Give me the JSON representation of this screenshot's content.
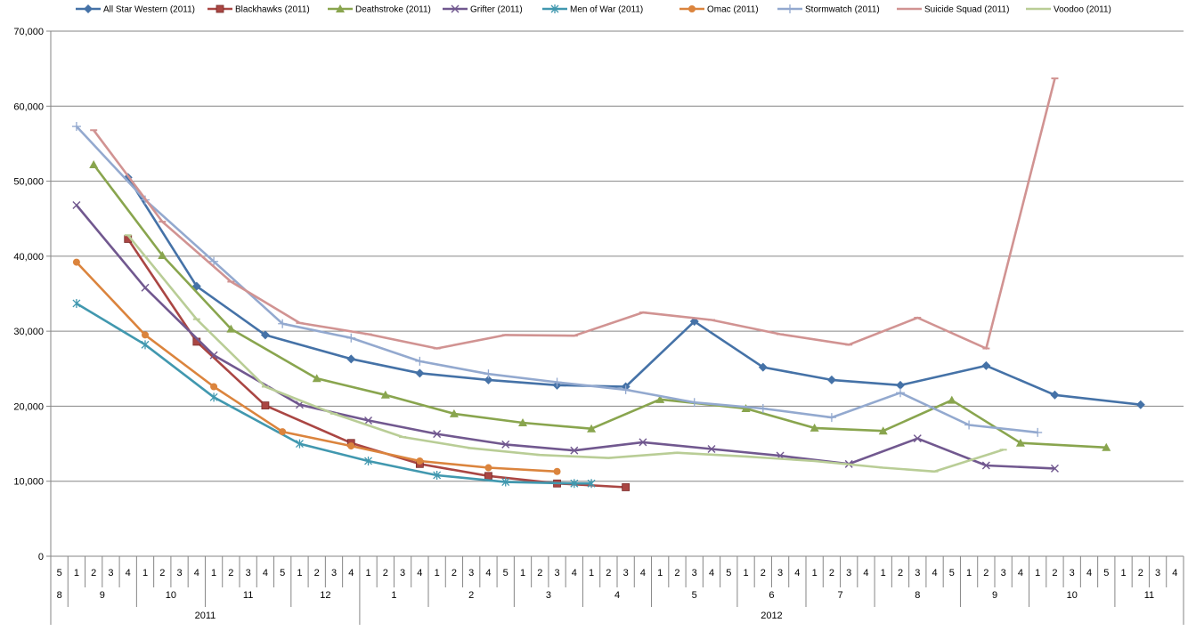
{
  "chart_data": {
    "type": "line",
    "ylim": [
      0,
      70000
    ],
    "y_ticks": [
      "0",
      "10,000",
      "20,000",
      "30,000",
      "40,000",
      "50,000",
      "60,000",
      "70,000"
    ],
    "grid": "horizontal",
    "legend_position": "top",
    "x_axis": {
      "weeks": [
        "5",
        "1",
        "2",
        "3",
        "4",
        "1",
        "2",
        "3",
        "4",
        "1",
        "2",
        "3",
        "4",
        "5",
        "1",
        "2",
        "3",
        "4",
        "1",
        "2",
        "3",
        "4",
        "1",
        "2",
        "3",
        "4",
        "5",
        "1",
        "2",
        "3",
        "4",
        "1",
        "2",
        "3",
        "4",
        "1",
        "2",
        "3",
        "4",
        "5",
        "1",
        "2",
        "3",
        "4",
        "1",
        "2",
        "3",
        "4",
        "1",
        "2",
        "3",
        "4",
        "5",
        "1",
        "2",
        "3",
        "4",
        "1",
        "2",
        "3",
        "4",
        "5",
        "1",
        "2",
        "3",
        "4"
      ],
      "months": [
        {
          "label": "8",
          "start": 0,
          "span": 1
        },
        {
          "label": "9",
          "start": 1,
          "span": 4
        },
        {
          "label": "10",
          "start": 5,
          "span": 4
        },
        {
          "label": "11",
          "start": 9,
          "span": 5
        },
        {
          "label": "12",
          "start": 14,
          "span": 4
        },
        {
          "label": "1",
          "start": 18,
          "span": 4
        },
        {
          "label": "2",
          "start": 22,
          "span": 5
        },
        {
          "label": "3",
          "start": 27,
          "span": 4
        },
        {
          "label": "4",
          "start": 31,
          "span": 4
        },
        {
          "label": "5",
          "start": 35,
          "span": 5
        },
        {
          "label": "6",
          "start": 40,
          "span": 4
        },
        {
          "label": "7",
          "start": 44,
          "span": 4
        },
        {
          "label": "8",
          "start": 48,
          "span": 5
        },
        {
          "label": "9",
          "start": 53,
          "span": 4
        },
        {
          "label": "10",
          "start": 57,
          "span": 5
        },
        {
          "label": "11",
          "start": 62,
          "span": 4
        }
      ],
      "years": [
        {
          "label": "2011",
          "start": 0,
          "span": 18
        },
        {
          "label": "2012",
          "start": 18,
          "span": 48
        }
      ]
    },
    "series": [
      {
        "name": "All Star Western (2011)",
        "color": "#4572A7",
        "marker": "diamond",
        "points": [
          [
            4,
            50500
          ],
          [
            8,
            36000
          ],
          [
            12,
            29500
          ],
          [
            17,
            26300
          ],
          [
            21,
            24400
          ],
          [
            25,
            23500
          ],
          [
            29,
            22800
          ],
          [
            33,
            22600
          ],
          [
            37,
            31300
          ],
          [
            41,
            25200
          ],
          [
            45,
            23500
          ],
          [
            49,
            22800
          ],
          [
            54,
            25400
          ],
          [
            58,
            21500
          ],
          [
            63,
            20200
          ]
        ]
      },
      {
        "name": "Blackhawks (2011)",
        "color": "#AA4643",
        "marker": "square",
        "points": [
          [
            4,
            42300
          ],
          [
            8,
            28600
          ],
          [
            12,
            20100
          ],
          [
            17,
            15100
          ],
          [
            21,
            12300
          ],
          [
            25,
            10700
          ],
          [
            29,
            9700
          ],
          [
            33,
            9200
          ]
        ]
      },
      {
        "name": "Deathstroke (2011)",
        "color": "#89A54E",
        "marker": "triangle",
        "points": [
          [
            2,
            52200
          ],
          [
            6,
            40100
          ],
          [
            10,
            30300
          ],
          [
            15,
            23700
          ],
          [
            19,
            21500
          ],
          [
            23,
            19000
          ],
          [
            27,
            17800
          ],
          [
            31,
            17000
          ],
          [
            35,
            20900
          ],
          [
            40,
            19700
          ],
          [
            44,
            17100
          ],
          [
            48,
            16700
          ],
          [
            52,
            20800
          ],
          [
            56,
            15100
          ],
          [
            61,
            14500
          ]
        ]
      },
      {
        "name": "Grifter (2011)",
        "color": "#71588F",
        "marker": "x",
        "points": [
          [
            1,
            46800
          ],
          [
            5,
            35800
          ],
          [
            9,
            26800
          ],
          [
            14,
            20200
          ],
          [
            18,
            18100
          ],
          [
            22,
            16300
          ],
          [
            26,
            14900
          ],
          [
            30,
            14100
          ],
          [
            34,
            15200
          ],
          [
            38,
            14300
          ],
          [
            42,
            13400
          ],
          [
            46,
            12300
          ],
          [
            50,
            15700
          ],
          [
            54,
            12100
          ],
          [
            58,
            11700
          ]
        ]
      },
      {
        "name": "Men of War (2011)",
        "color": "#4198AF",
        "marker": "star",
        "points": [
          [
            1,
            33700
          ],
          [
            5,
            28200
          ],
          [
            9,
            21200
          ],
          [
            14,
            15000
          ],
          [
            18,
            12700
          ],
          [
            22,
            10800
          ],
          [
            26,
            9900
          ],
          [
            30,
            9700
          ],
          [
            31,
            9700
          ]
        ]
      },
      {
        "name": "Omac (2011)",
        "color": "#DB843D",
        "marker": "circle",
        "points": [
          [
            1,
            39200
          ],
          [
            5,
            29500
          ],
          [
            9,
            22600
          ],
          [
            13,
            16600
          ],
          [
            17,
            14700
          ],
          [
            21,
            12700
          ],
          [
            25,
            11800
          ],
          [
            29,
            11300
          ]
        ]
      },
      {
        "name": "Stormwatch (2011)",
        "color": "#93A9CF",
        "marker": "plus",
        "points": [
          [
            1,
            57300
          ],
          [
            5,
            47500
          ],
          [
            9,
            39300
          ],
          [
            13,
            31000
          ],
          [
            17,
            29100
          ],
          [
            21,
            26000
          ],
          [
            25,
            24300
          ],
          [
            29,
            23200
          ],
          [
            33,
            22200
          ],
          [
            37,
            20500
          ],
          [
            41,
            19700
          ],
          [
            45,
            18500
          ],
          [
            49,
            21800
          ],
          [
            53,
            17500
          ],
          [
            57,
            16500
          ]
        ]
      },
      {
        "name": "Suicide Squad (2011)",
        "color": "#D19392",
        "marker": "dash",
        "points": [
          [
            2,
            56800
          ],
          [
            6,
            44600
          ],
          [
            10,
            36600
          ],
          [
            14,
            31100
          ],
          [
            18,
            29600
          ],
          [
            22,
            27700
          ],
          [
            26,
            29500
          ],
          [
            30,
            29400
          ],
          [
            34,
            32500
          ],
          [
            38,
            31500
          ],
          [
            42,
            29600
          ],
          [
            46,
            28200
          ],
          [
            50,
            31800
          ],
          [
            54,
            27700
          ],
          [
            58,
            63700
          ]
        ]
      },
      {
        "name": "Voodoo (2011)",
        "color": "#B9CD96",
        "marker": "dash",
        "points": [
          [
            4,
            42800
          ],
          [
            8,
            31600
          ],
          [
            12,
            22600
          ],
          [
            16,
            19000
          ],
          [
            20,
            15900
          ],
          [
            24,
            14400
          ],
          [
            28,
            13500
          ],
          [
            32,
            13100
          ],
          [
            36,
            13800
          ],
          [
            40,
            13300
          ],
          [
            44,
            12700
          ],
          [
            48,
            11800
          ],
          [
            51,
            11300
          ],
          [
            55,
            14200
          ]
        ]
      }
    ]
  }
}
